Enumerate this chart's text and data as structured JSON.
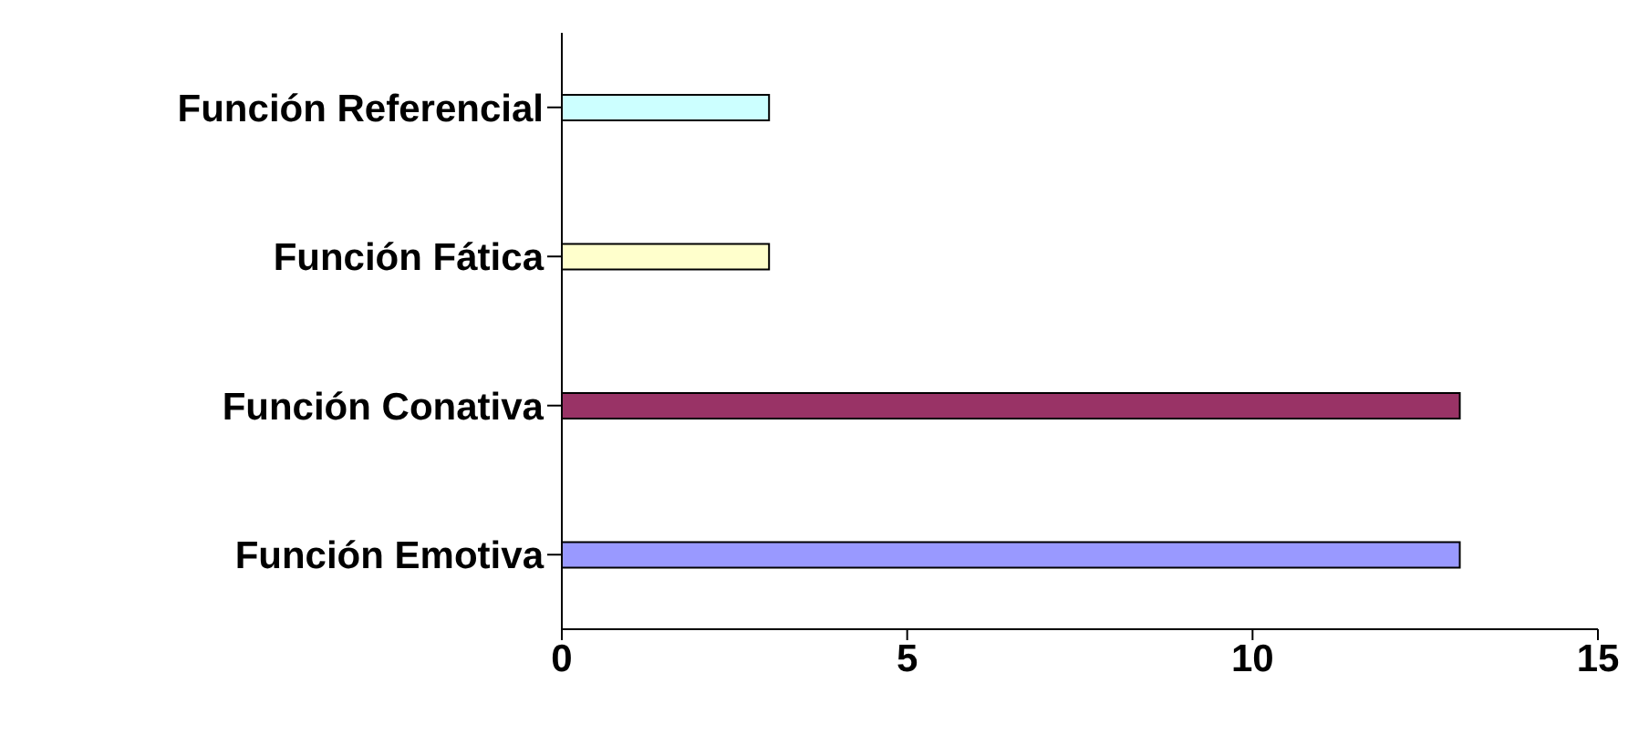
{
  "chart_data": {
    "type": "bar",
    "orientation": "horizontal",
    "categories": [
      "Función Referencial",
      "Función Fática",
      "Función Conativa",
      "Función Emotiva"
    ],
    "values": [
      3,
      3,
      13,
      13
    ],
    "colors": [
      "#ccffff",
      "#ffffcc",
      "#993366",
      "#9999ff"
    ],
    "xlim": [
      0,
      15
    ],
    "xticks": [
      0,
      5,
      10,
      15
    ],
    "grid": false,
    "legend": false
  }
}
